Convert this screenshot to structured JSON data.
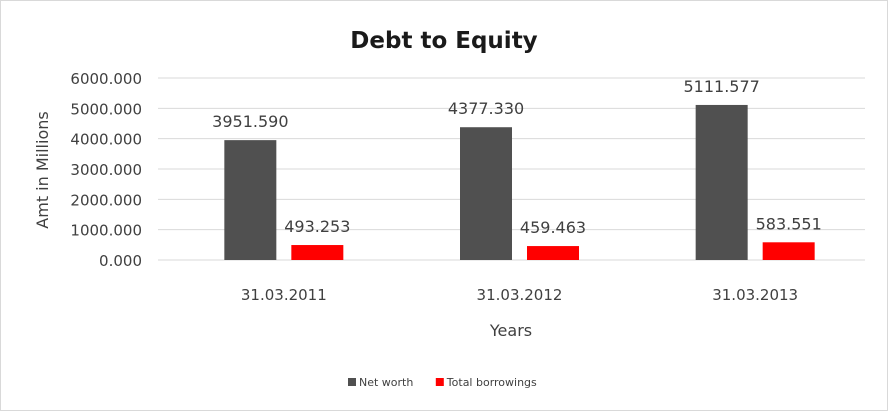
{
  "chart_data": {
    "type": "bar",
    "title": "Debt to Equity",
    "xlabel": "Years",
    "ylabel": "Amt in Millions",
    "categories": [
      "31.03.2011",
      "31.03.2012",
      "31.03.2013"
    ],
    "series": [
      {
        "name": "Net worth",
        "color": "#505050",
        "values": [
          3951.59,
          4377.33,
          5111.577
        ],
        "labels": [
          "3951.590",
          "4377.330",
          "5111.577"
        ]
      },
      {
        "name": "Total borrowings",
        "color": "#ff0000",
        "values": [
          493.253,
          459.463,
          583.551
        ],
        "labels": [
          "493.253",
          "459.463",
          "583.551"
        ]
      }
    ],
    "ylim": [
      0,
      6000
    ],
    "yticks": [
      "0.000",
      "1000.000",
      "2000.000",
      "3000.000",
      "4000.000",
      "5000.000",
      "6000.000"
    ],
    "grid": true,
    "legend": "bottom"
  }
}
